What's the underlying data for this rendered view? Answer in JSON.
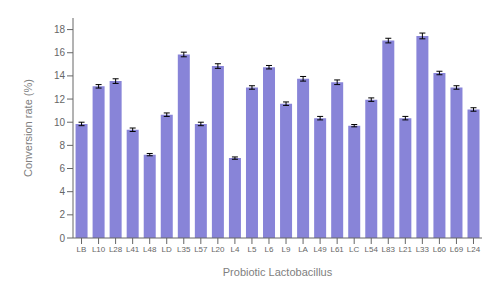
{
  "chart_data": {
    "type": "bar",
    "categories": [
      "LB",
      "L10",
      "L28",
      "L41",
      "L48",
      "LD",
      "L35",
      "L57",
      "L20",
      "L4",
      "L5",
      "L6",
      "L9",
      "LA",
      "L49",
      "L61",
      "LC",
      "L54",
      "L83",
      "L21",
      "L33",
      "L60",
      "L69",
      "L24"
    ],
    "values": [
      9.85,
      13.1,
      13.55,
      9.35,
      7.2,
      10.65,
      15.85,
      9.85,
      14.85,
      6.9,
      13.0,
      14.75,
      11.6,
      13.75,
      10.35,
      13.45,
      9.7,
      11.95,
      17.05,
      10.35,
      17.45,
      14.25,
      13.0,
      11.1
    ],
    "errors": [
      0.15,
      0.15,
      0.2,
      0.15,
      0.1,
      0.15,
      0.2,
      0.15,
      0.2,
      0.1,
      0.15,
      0.15,
      0.15,
      0.2,
      0.15,
      0.2,
      0.1,
      0.15,
      0.2,
      0.15,
      0.25,
      0.15,
      0.15,
      0.15
    ],
    "ylabel": "Conversion rate (%)",
    "xlabel": "Probiotic Lactobacillus",
    "ylim": [
      0,
      19
    ],
    "yticks": [
      0,
      2,
      4,
      6,
      8,
      10,
      12,
      14,
      16,
      18
    ],
    "grid": false
  }
}
